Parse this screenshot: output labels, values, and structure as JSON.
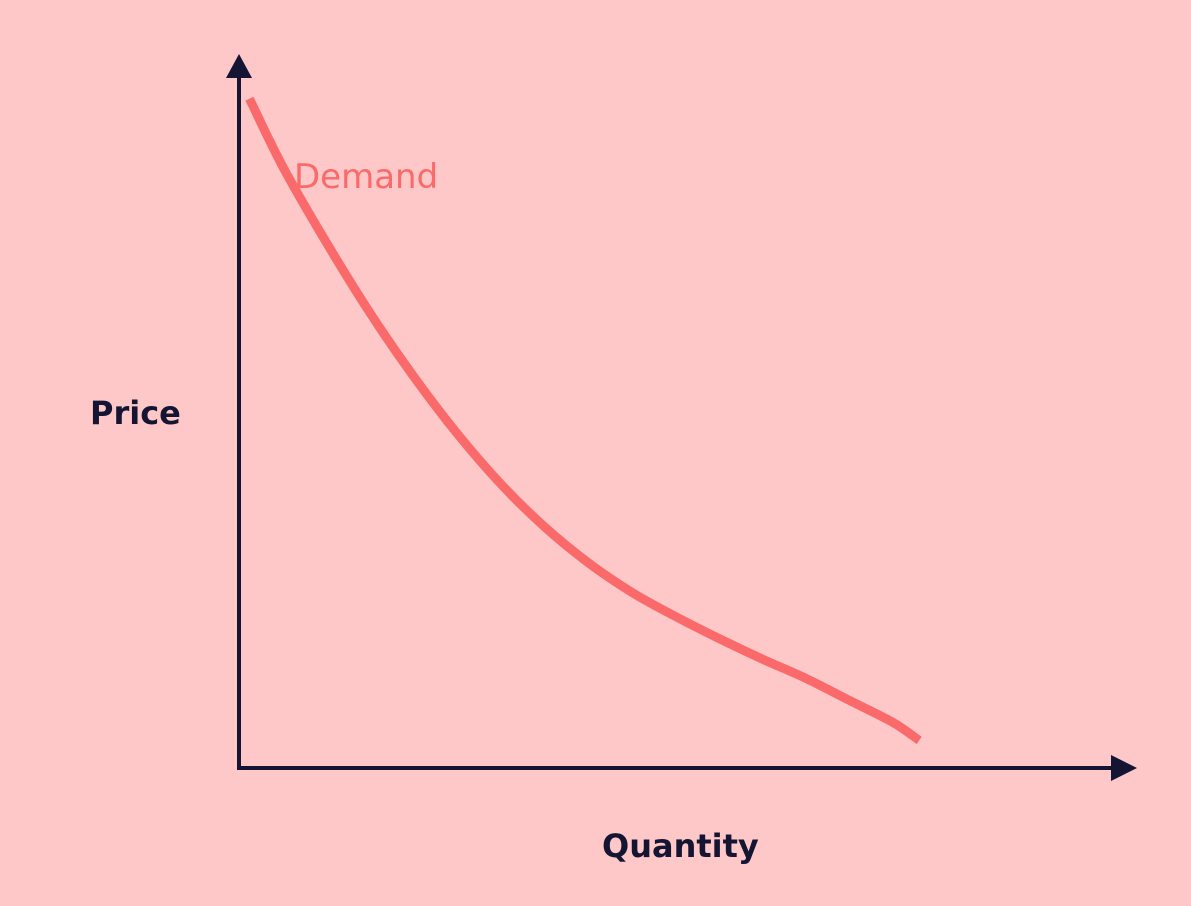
{
  "chart_data": {
    "type": "line",
    "title": "",
    "xlabel": "Quantity",
    "ylabel": "Price",
    "xlim": [
      0,
      10
    ],
    "ylim": [
      0,
      10
    ],
    "grid": false,
    "legend": "none",
    "series": [
      {
        "name": "Demand",
        "x": [
          0.12,
          0.5,
          1.0,
          1.5,
          2.0,
          2.5,
          3.0,
          3.5,
          4.0,
          4.5,
          5.0,
          5.5,
          6.0,
          6.5,
          7.0,
          7.5,
          7.8
        ],
        "y": [
          9.7,
          8.72,
          7.62,
          6.6,
          5.68,
          4.85,
          4.12,
          3.5,
          2.98,
          2.55,
          2.2,
          1.88,
          1.58,
          1.3,
          0.98,
          0.66,
          0.4
        ]
      }
    ]
  },
  "colors": {
    "background": "#ffc8c8",
    "axis": "#141433",
    "demand": "#fa6a6a"
  }
}
